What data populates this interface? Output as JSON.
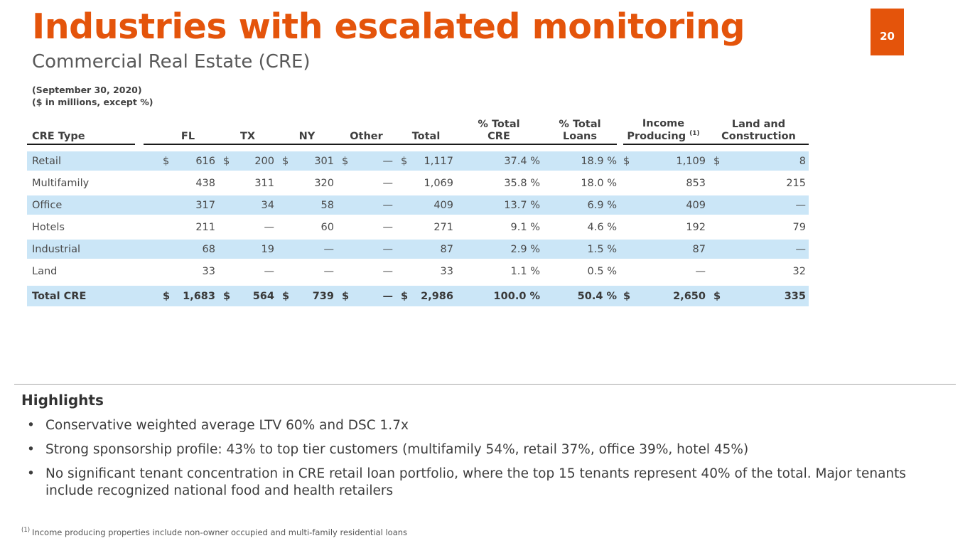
{
  "slide": {
    "title": "Industries with escalated monitoring",
    "subtitle": "Commercial Real Estate (CRE)",
    "page_number": "20",
    "date_note": "(September 30, 2020)",
    "units_note": "($ in millions, except %)",
    "colors": {
      "accent_orange": "#E4540B",
      "stripe_blue": "#CBE6F7"
    }
  },
  "table": {
    "currency_symbol": "$",
    "columns": [
      {
        "label": "CRE Type"
      },
      {
        "label": "FL"
      },
      {
        "label": "TX"
      },
      {
        "label": "NY"
      },
      {
        "label": "Other"
      },
      {
        "label": "Total"
      },
      {
        "line1": "% Total",
        "line2": "CRE"
      },
      {
        "line1": "% Total",
        "line2": "Loans"
      },
      {
        "line1": "Income",
        "line2": "Producing",
        "footnote_ref": "(1)"
      },
      {
        "line1": "Land and",
        "line2": "Construction"
      }
    ],
    "rows": [
      {
        "label": "Retail",
        "shaded": true,
        "dollar_signs": true,
        "is_total": false,
        "values": [
          "616",
          "200",
          "301",
          "—",
          "1,117",
          "37.4 %",
          "18.9 %",
          "1,109",
          "8"
        ]
      },
      {
        "label": "Multifamily",
        "shaded": false,
        "dollar_signs": false,
        "is_total": false,
        "values": [
          "438",
          "311",
          "320",
          "—",
          "1,069",
          "35.8 %",
          "18.0 %",
          "853",
          "215"
        ]
      },
      {
        "label": "Office",
        "shaded": true,
        "dollar_signs": false,
        "is_total": false,
        "values": [
          "317",
          "34",
          "58",
          "—",
          "409",
          "13.7 %",
          "6.9 %",
          "409",
          "—"
        ]
      },
      {
        "label": "Hotels",
        "shaded": false,
        "dollar_signs": false,
        "is_total": false,
        "values": [
          "211",
          "—",
          "60",
          "—",
          "271",
          "9.1 %",
          "4.6 %",
          "192",
          "79"
        ]
      },
      {
        "label": "Industrial",
        "shaded": true,
        "dollar_signs": false,
        "is_total": false,
        "values": [
          "68",
          "19",
          "—",
          "—",
          "87",
          "2.9 %",
          "1.5 %",
          "87",
          "—"
        ]
      },
      {
        "label": "Land",
        "shaded": false,
        "dollar_signs": false,
        "is_total": false,
        "values": [
          "33",
          "—",
          "—",
          "—",
          "33",
          "1.1 %",
          "0.5 %",
          "—",
          "32"
        ]
      },
      {
        "label": "Total CRE",
        "shaded": true,
        "dollar_signs": true,
        "is_total": true,
        "values": [
          "1,683",
          "564",
          "739",
          "—",
          "2,986",
          "100.0 %",
          "50.4 %",
          "2,650",
          "335"
        ]
      }
    ]
  },
  "highlights": {
    "heading": "Highlights",
    "bullets": [
      "Conservative weighted average LTV 60% and DSC 1.7x",
      "Strong sponsorship profile: 43% to top tier customers (multifamily 54%, retail 37%, office 39%, hotel 45%)",
      "No significant tenant concentration in CRE retail loan portfolio, where the top 15 tenants represent 40% of the total. Major tenants include recognized national food and health retailers"
    ]
  },
  "footnote": {
    "marker": "(1)",
    "text": "Income producing properties include non-owner occupied and multi-family residential loans"
  }
}
